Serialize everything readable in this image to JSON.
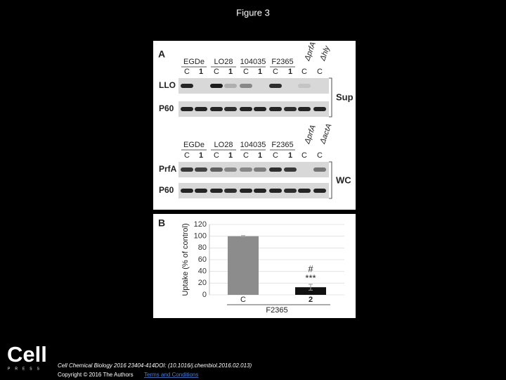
{
  "title": "Figure 3",
  "panel_a": {
    "label": "A",
    "groups_top": [
      "EGDe",
      "LO28",
      "104035",
      "F2365"
    ],
    "mutants_top": [
      "ΔprfA",
      "Δhly"
    ],
    "lanes_top": [
      "C",
      "1",
      "C",
      "1",
      "C",
      "1",
      "C",
      "1",
      "C",
      "C"
    ],
    "rows_top": [
      "LLO",
      "P60"
    ],
    "fraction_top": "Sup",
    "groups_bottom": [
      "EGDe",
      "LO28",
      "104035",
      "F2365"
    ],
    "mutants_bottom": [
      "ΔprfA",
      "ΔactA"
    ],
    "lanes_bottom": [
      "C",
      "1",
      "C",
      "1",
      "C",
      "1",
      "C",
      "1",
      "C",
      "C"
    ],
    "rows_bottom": [
      "PrfA",
      "P60"
    ],
    "fraction_bottom": "WC"
  },
  "chart_data": {
    "type": "bar",
    "panel_label": "B",
    "y_label": "Uptake (% of control)",
    "categories": [
      "C",
      "2"
    ],
    "group_label": "F2365",
    "values": [
      100,
      13
    ],
    "errors": [
      1,
      5
    ],
    "colors": [
      "#8c8c8c",
      "#111111"
    ],
    "annotations": [
      "***",
      "#"
    ],
    "ylim": [
      0,
      120
    ],
    "yticks": [
      0,
      20,
      40,
      60,
      80,
      100,
      120
    ],
    "grid": true
  },
  "footer": {
    "journal": "Cell Chemical Biology 2016 23404-414DOI: (10.1016/j.chembiol.2016.02.013)",
    "copyright": "Copyright © 2016 The Authors",
    "link": "Terms and Conditions"
  },
  "logo": {
    "name": "Cell",
    "press": "PRESS"
  }
}
